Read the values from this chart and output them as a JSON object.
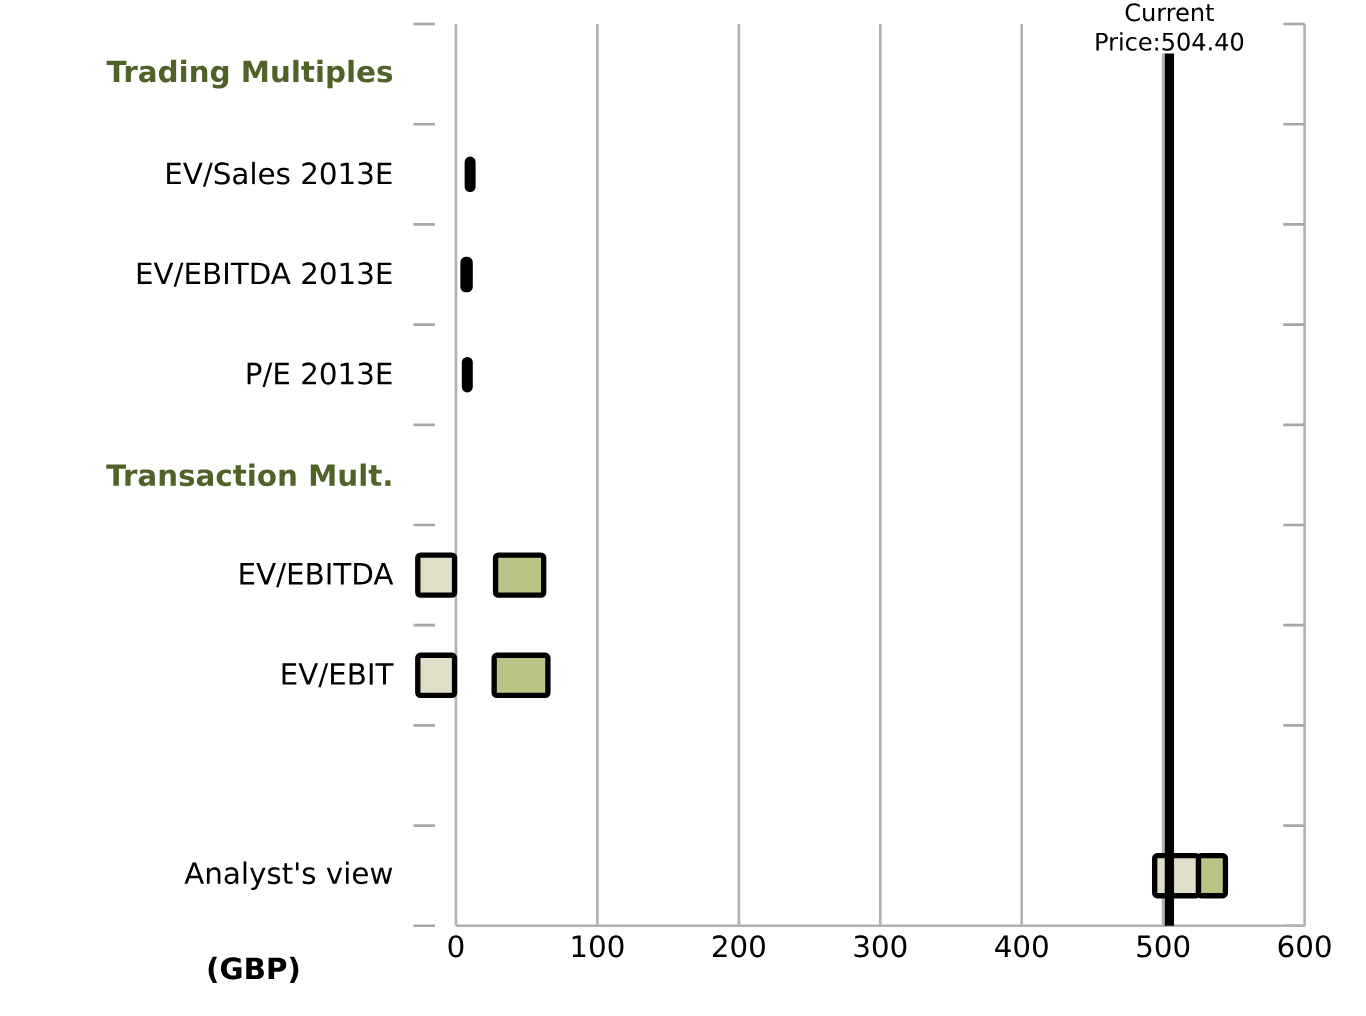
{
  "chart_data": {
    "type": "bar",
    "orientation": "horizontal",
    "xlabel": "(GBP)",
    "categories": [
      "Trading Multiples",
      "EV/Sales 2013E",
      "EV/EBITDA 2013E",
      "P/E 2013E",
      "Transaction Mult.",
      "EV/EBITDA",
      "EV/EBIT",
      null,
      "Analyst's view"
    ],
    "series": [
      {
        "color": "#000000",
        "base": [
          null,
          8,
          5,
          6,
          null,
          null,
          null,
          null,
          null
        ],
        "values": [
          null,
          4,
          5,
          4,
          null,
          null,
          null,
          null,
          null
        ]
      },
      {
        "color": "#e2dfc9",
        "base": [
          null,
          null,
          null,
          null,
          null,
          -27,
          -27,
          null,
          494
        ],
        "values": [
          null,
          null,
          null,
          null,
          null,
          26,
          26,
          null,
          31
        ]
      },
      {
        "color": "#bcc386",
        "base": [
          null,
          null,
          null,
          null,
          null,
          28,
          27,
          null,
          525
        ],
        "values": [
          null,
          null,
          null,
          null,
          null,
          34,
          38,
          null,
          19
        ]
      }
    ],
    "xlim": [
      -30,
      600
    ],
    "xticks": [
      0,
      100,
      200,
      300,
      400,
      500,
      600
    ],
    "grid": "x",
    "ref_lines": [
      {
        "axis": "x",
        "value": 504.4,
        "label": "Current Price:504.40",
        "color": "#000000"
      }
    ]
  }
}
